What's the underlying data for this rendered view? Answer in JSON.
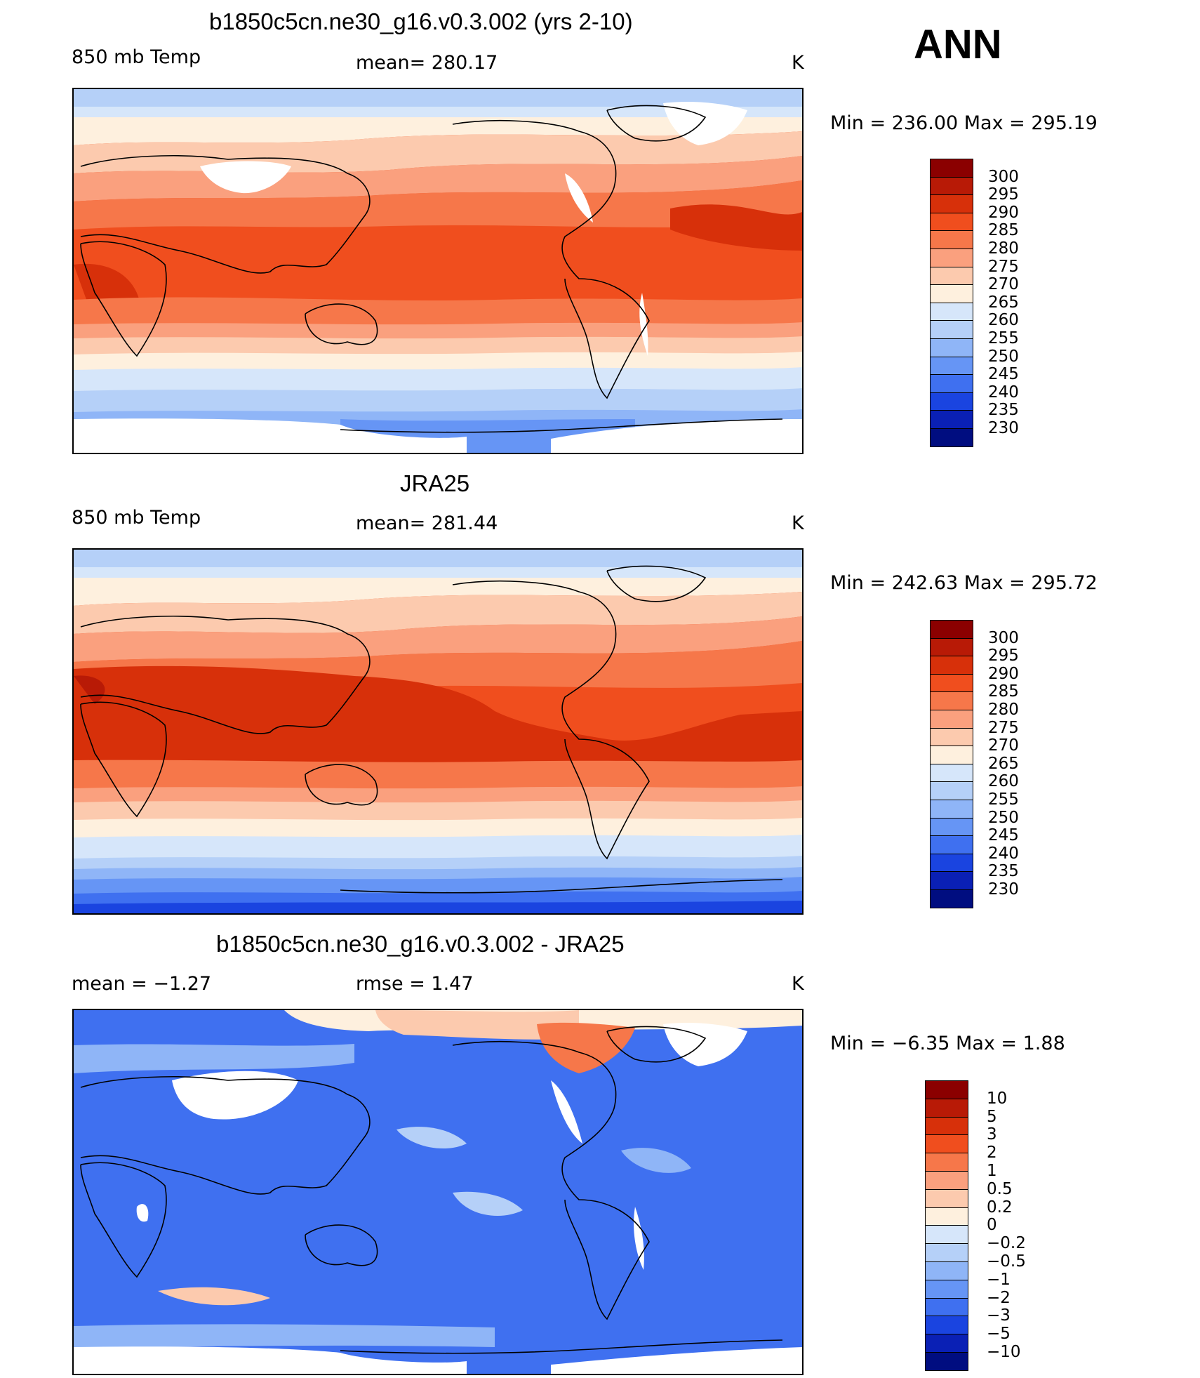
{
  "header": {
    "season": "ANN"
  },
  "panels": [
    {
      "id": "model",
      "title": "b1850c5cn.ne30_g16.v0.3.002 (yrs 2-10)",
      "left_label": "850 mb Temp",
      "center_label": "mean=  280.17",
      "units": "K",
      "minmax": "Min  =  236.00  Max  =  295.19",
      "colorbar": {
        "labels": [
          "300",
          "295",
          "290",
          "285",
          "280",
          "275",
          "270",
          "265",
          "260",
          "255",
          "250",
          "245",
          "240",
          "235",
          "230"
        ],
        "colors": [
          "#8B0000",
          "#B81A06",
          "#D7300A",
          "#F04E1E",
          "#F6774A",
          "#FAA07E",
          "#FCCAAE",
          "#FEF0DE",
          "#D6E6FA",
          "#B5D0F8",
          "#8FB5F7",
          "#6695F5",
          "#3F70F0",
          "#1A44E0",
          "#0A20B5",
          "#000D80"
        ]
      }
    },
    {
      "id": "obs",
      "title": "JRA25",
      "left_label": "850 mb Temp",
      "center_label": "mean=  281.44",
      "units": "K",
      "minmax": "Min  =  242.63  Max  =  295.72",
      "colorbar": {
        "labels": [
          "300",
          "295",
          "290",
          "285",
          "280",
          "275",
          "270",
          "265",
          "260",
          "255",
          "250",
          "245",
          "240",
          "235",
          "230"
        ],
        "colors": [
          "#8B0000",
          "#B81A06",
          "#D7300A",
          "#F04E1E",
          "#F6774A",
          "#FAA07E",
          "#FCCAAE",
          "#FEF0DE",
          "#D6E6FA",
          "#B5D0F8",
          "#8FB5F7",
          "#6695F5",
          "#3F70F0",
          "#1A44E0",
          "#0A20B5",
          "#000D80"
        ]
      }
    },
    {
      "id": "diff",
      "title": "b1850c5cn.ne30_g16.v0.3.002 - JRA25",
      "left_label": "mean =    −1.27",
      "center_label": "rmse =     1.47",
      "units": "K",
      "minmax": "Min  =    −6.35  Max  =      1.88",
      "colorbar": {
        "labels": [
          "10",
          "5",
          "3",
          "2",
          "1",
          "0.5",
          "0.2",
          "0",
          "−0.2",
          "−0.5",
          "−1",
          "−2",
          "−3",
          "−5",
          "−10"
        ],
        "colors": [
          "#8B0000",
          "#B81A06",
          "#D7300A",
          "#F04E1E",
          "#F6774A",
          "#FAA07E",
          "#FCCAAE",
          "#FEF0DE",
          "#D6E6FA",
          "#B5D0F8",
          "#8FB5F7",
          "#6695F5",
          "#3F70F0",
          "#1A44E0",
          "#0A20B5",
          "#000D80"
        ]
      }
    }
  ]
}
